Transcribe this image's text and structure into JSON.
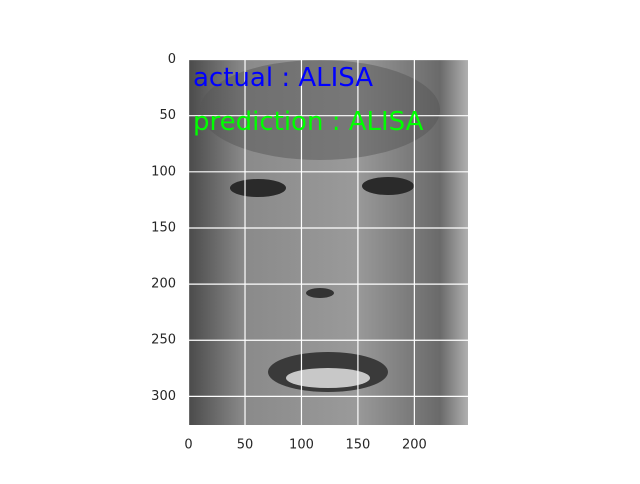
{
  "chart_data": {
    "type": "image",
    "annotations": [
      {
        "text": "actual : ALISA",
        "color": "#0000ff"
      },
      {
        "text": "prediction : ALISA",
        "color": "#00ff00"
      }
    ],
    "xlim": [
      -0.5,
      247.5
    ],
    "ylim": [
      -0.5,
      325.5
    ],
    "yaxis_inverted": true,
    "xticks": [
      0,
      50,
      100,
      150,
      200
    ],
    "yticks": [
      0,
      50,
      100,
      150,
      200,
      250,
      300
    ],
    "grid": true,
    "grid_color": "#ffffff"
  }
}
